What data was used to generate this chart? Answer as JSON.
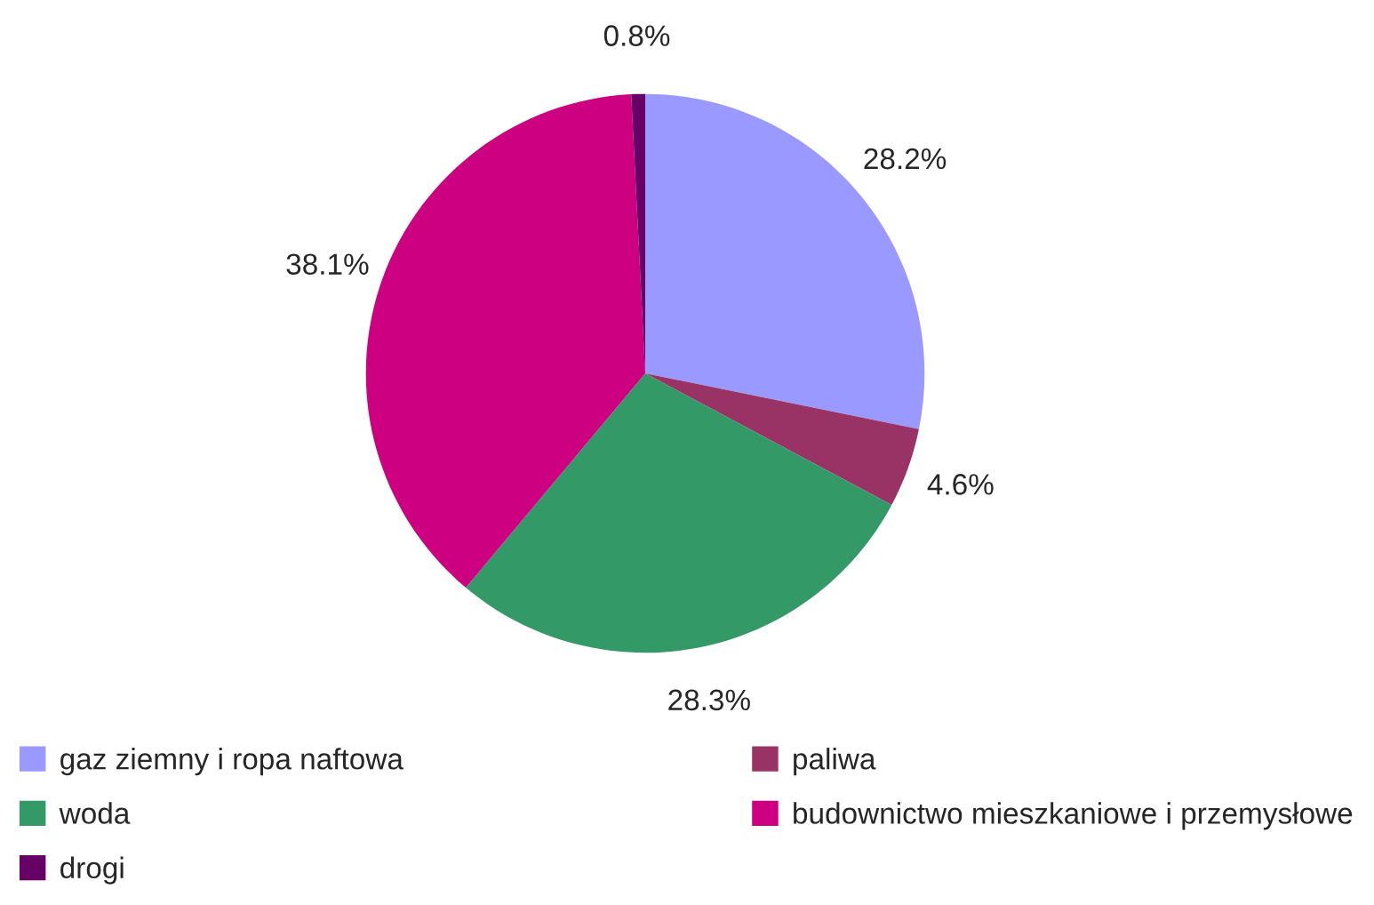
{
  "chart_data": {
    "type": "pie",
    "categories": [
      "gaz ziemny i ropa naftowa",
      "paliwa",
      "woda",
      "budownictwo mieszkaniowe i przemysłowe",
      "drogi"
    ],
    "values": [
      28.2,
      4.6,
      28.3,
      38.1,
      0.8
    ],
    "colors": [
      "#9999ff",
      "#993366",
      "#339966",
      "#cc0080",
      "#660066"
    ],
    "value_labels": [
      "28.2%",
      "4.6%",
      "28.3%",
      "38.1%",
      "0.8%"
    ],
    "legend": "bottom"
  }
}
